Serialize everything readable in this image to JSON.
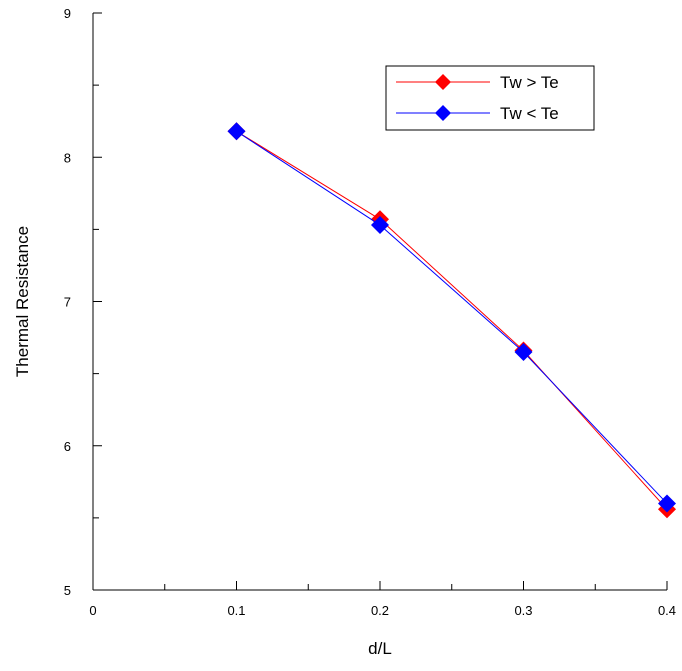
{
  "chart_data": {
    "type": "line",
    "xlabel": "d/L",
    "ylabel": "Thermal Resistance",
    "xlim": [
      0,
      0.4
    ],
    "ylim": [
      5,
      9
    ],
    "x_ticks": [
      "0",
      "0.1",
      "0.2",
      "0.3",
      "0.4"
    ],
    "y_ticks": [
      "5",
      "6",
      "7",
      "8",
      "9"
    ],
    "grid": false,
    "legend_position": "top-right",
    "x": [
      0.1,
      0.2,
      0.3,
      0.4
    ],
    "series": [
      {
        "name": "Tw > Te",
        "values": [
          8.18,
          7.57,
          6.66,
          5.56
        ],
        "color": "#ff0000",
        "marker": "diamond"
      },
      {
        "name": "Tw < Te",
        "values": [
          8.18,
          7.53,
          6.65,
          5.6
        ],
        "color": "#0000ff",
        "marker": "diamond"
      }
    ]
  }
}
